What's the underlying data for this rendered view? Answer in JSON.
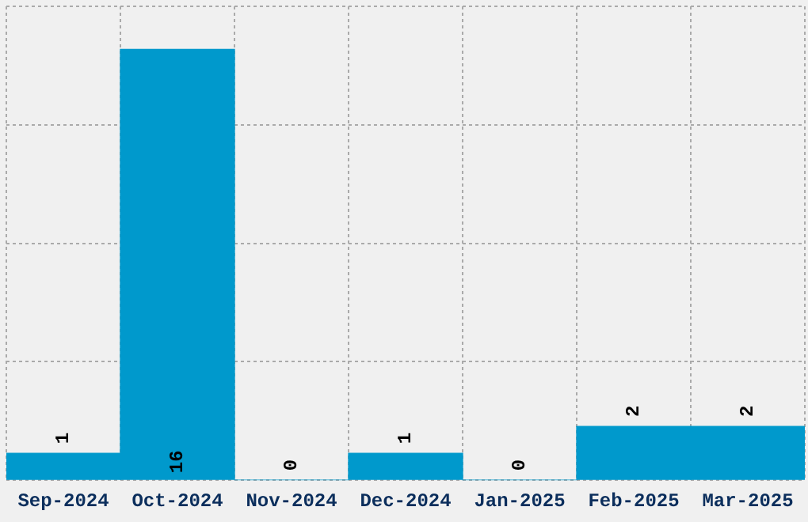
{
  "chart_data": {
    "type": "bar",
    "categories": [
      "Sep-2024",
      "Oct-2024",
      "Nov-2024",
      "Dec-2024",
      "Jan-2025",
      "Feb-2025",
      "Mar-2025"
    ],
    "values": [
      1,
      16,
      0,
      1,
      0,
      2,
      2
    ],
    "color": "#0099cc",
    "data_labels": true,
    "grid": true,
    "tick_labels": "x",
    "ylim": [
      0,
      17.6
    ],
    "yticks": [
      {
        "value": 0,
        "label": null
      },
      {
        "value": 4.4,
        "label": null
      },
      {
        "value": 8.8,
        "label": null
      },
      {
        "value": 13.2,
        "label": null
      },
      {
        "value": 17.6,
        "label": null
      }
    ]
  }
}
